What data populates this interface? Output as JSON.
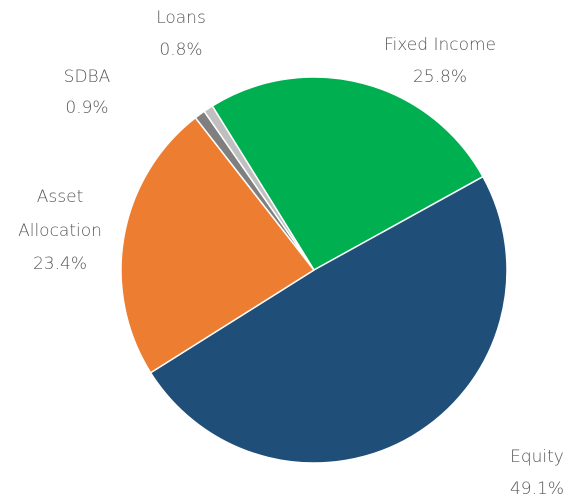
{
  "chart_data": {
    "type": "pie",
    "categories": [
      "Fixed Income",
      "Equity",
      "Asset Allocation",
      "SDBA",
      "Loans"
    ],
    "values": [
      25.8,
      49.1,
      23.4,
      0.9,
      0.8
    ],
    "value_labels": [
      "25.8%",
      "49.1%",
      "23.4%",
      "0.9%",
      "0.8%"
    ],
    "colors": [
      "#00b050",
      "#1f4e79",
      "#ed7d31",
      "#7f7f7f",
      "#bfbfbf"
    ]
  }
}
